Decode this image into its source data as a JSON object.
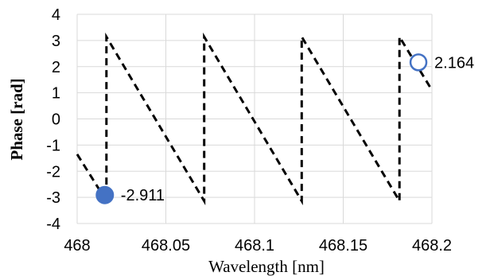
{
  "chart_data": {
    "type": "line",
    "title": "",
    "xlabel": "Wavelength [nm]",
    "ylabel": "Phase [rad]",
    "xlim": [
      468,
      468.2
    ],
    "ylim": [
      -4,
      4
    ],
    "x_ticks": [
      468,
      468.05,
      468.1,
      468.15,
      468.2
    ],
    "x_tick_labels": [
      "468",
      "468.05",
      "468.1",
      "468.15",
      "468.2"
    ],
    "y_ticks": [
      4,
      3,
      2,
      1,
      0,
      -1,
      -2,
      -3,
      -4
    ],
    "y_tick_labels": [
      "4",
      "3",
      "2",
      "1",
      "0",
      "-1",
      "-2",
      "-3",
      "-4"
    ],
    "grid": true,
    "legend": "none",
    "series": [
      {
        "style": "dashed",
        "color": "#000000",
        "x": [
          468.0,
          468.0165,
          468.0165,
          468.0716,
          468.0716,
          468.1266,
          468.1266,
          468.1817,
          468.1817,
          468.2
        ],
        "y": [
          -1.35,
          -3.14,
          3.14,
          -3.14,
          3.14,
          -3.14,
          3.14,
          -3.14,
          3.14,
          1.1
        ]
      }
    ],
    "markers": [
      {
        "x": 468.0156,
        "y": -2.911,
        "label": "-2.911",
        "style": "filled",
        "color": "#4472C4"
      },
      {
        "x": 468.1924,
        "y": 2.164,
        "label": "2.164",
        "style": "hollow",
        "color": "#4472C4"
      }
    ]
  }
}
